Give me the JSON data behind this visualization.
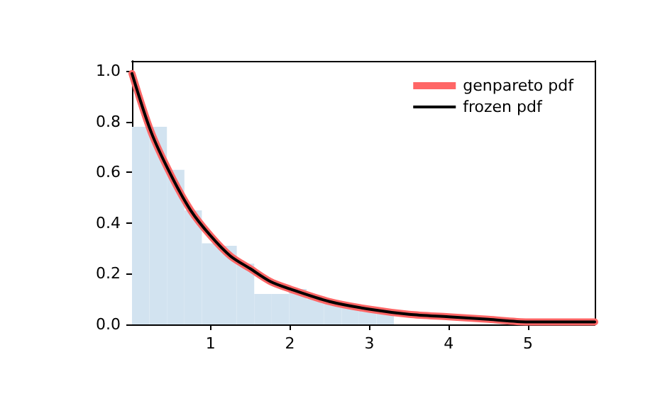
{
  "chart_data": {
    "type": "histogram",
    "xlim": [
      0.01,
      5.84
    ],
    "xticks": [
      1,
      2,
      3,
      4,
      5
    ],
    "ylim": [
      0,
      1.04
    ],
    "yticks": [
      {
        "value": 0,
        "label": "0.0"
      },
      {
        "value": 0.2,
        "label": "0.2"
      },
      {
        "value": 0.4,
        "label": "0.4"
      },
      {
        "value": 0.6,
        "label": "0.6"
      },
      {
        "value": 0.8,
        "label": "0.8"
      },
      {
        "value": 1,
        "label": "1.0"
      }
    ],
    "grid": false,
    "legend": "top right",
    "series": [
      {
        "color": "#d2e3f0",
        "bins": [
          0.01,
          0.23,
          0.45,
          0.67,
          0.89,
          1.11,
          1.33,
          1.55,
          1.77,
          1.99,
          2.21,
          2.43,
          2.65,
          2.87,
          3.09,
          3.31
        ],
        "values": [
          0.78,
          0.78,
          0.61,
          0.45,
          0.32,
          0.31,
          0.24,
          0.12,
          0.12,
          0.14,
          0.1,
          0.09,
          0.07,
          0.06,
          0.05
        ]
      },
      {
        "type": "line",
        "name": "genpareto pdf",
        "color": "#ff6666",
        "x": [
          0.01,
          0.25,
          0.5,
          0.75,
          1,
          1.25,
          1.5,
          1.75,
          2,
          2.5,
          3,
          3.5,
          4,
          4.5,
          5,
          5.84
        ],
        "values": [
          0.99,
          0.76,
          0.59,
          0.45,
          0.35,
          0.27,
          0.22,
          0.17,
          0.14,
          0.09,
          0.06,
          0.04,
          0.03,
          0.02,
          0.01,
          0.01
        ]
      },
      {
        "type": "line",
        "name": "frozen pdf",
        "color": "#000000",
        "x": [
          0.01,
          0.25,
          0.5,
          0.75,
          1,
          1.25,
          1.5,
          1.75,
          2,
          2.5,
          3,
          3.5,
          4,
          4.5,
          5,
          5.84
        ],
        "values": [
          0.99,
          0.76,
          0.59,
          0.45,
          0.35,
          0.27,
          0.22,
          0.17,
          0.14,
          0.09,
          0.06,
          0.04,
          0.03,
          0.02,
          0.01,
          0.01
        ]
      }
    ]
  }
}
